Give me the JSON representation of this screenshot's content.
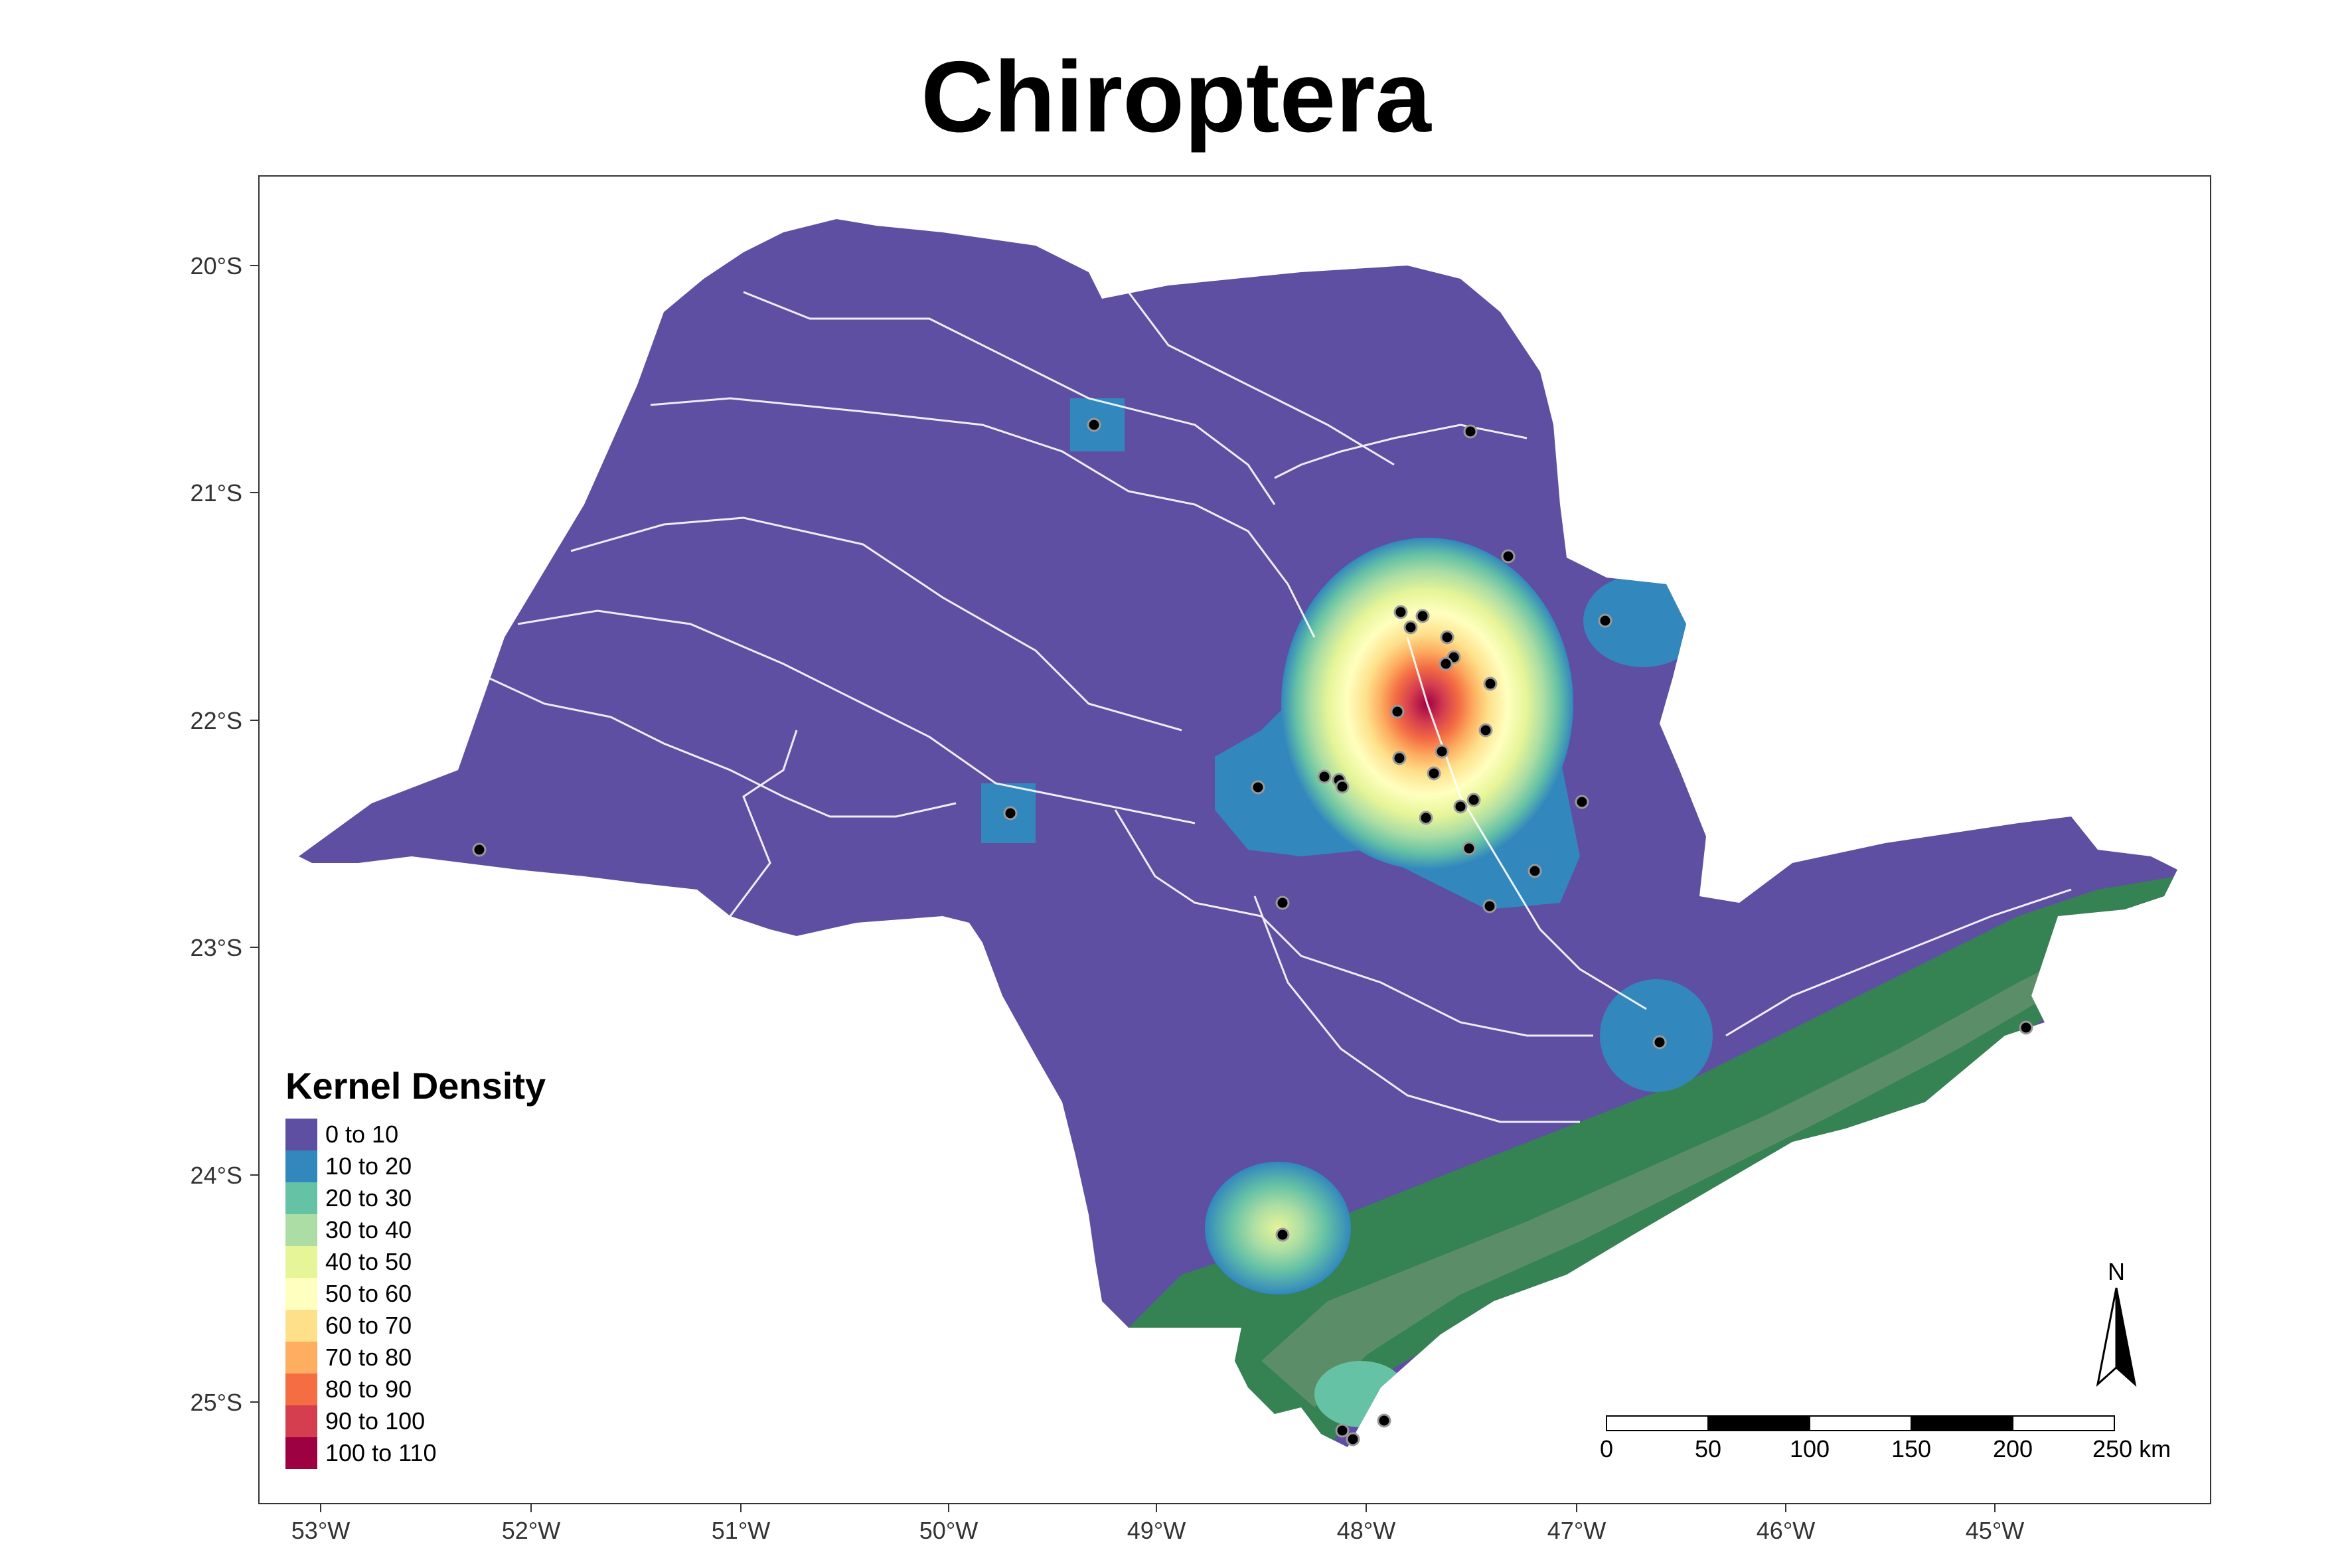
{
  "title": "Chiroptera",
  "axes": {
    "x_ticks": [
      "53°W",
      "52°W",
      "51°W",
      "50°W",
      "49°W",
      "48°W",
      "47°W",
      "46°W",
      "45°W"
    ],
    "y_ticks": [
      "20°S",
      "21°S",
      "22°S",
      "23°S",
      "24°S",
      "25°S"
    ]
  },
  "legend": {
    "title": "Kernel Density",
    "items": [
      {
        "label": "0 to 10",
        "color": "#5E4FA2"
      },
      {
        "label": "10 to 20",
        "color": "#3288BD"
      },
      {
        "label": "20 to 30",
        "color": "#66C2A5"
      },
      {
        "label": "30 to 40",
        "color": "#ABDDA4"
      },
      {
        "label": "40 to 50",
        "color": "#E6F598"
      },
      {
        "label": "50 to 60",
        "color": "#FFFFBF"
      },
      {
        "label": "60 to 70",
        "color": "#FEE08B"
      },
      {
        "label": "70 to 80",
        "color": "#FDAE61"
      },
      {
        "label": "80 to 90",
        "color": "#F46D43"
      },
      {
        "label": "90 to 100",
        "color": "#D53E4F"
      },
      {
        "label": "100 to 110",
        "color": "#9E0142"
      }
    ]
  },
  "scale_bar": {
    "labels": [
      "0",
      "50",
      "100",
      "150",
      "200",
      "250 km"
    ]
  },
  "north_arrow": {
    "label": "N"
  },
  "colors": {
    "state_fill": "#5E4FA2",
    "forest": "#2E8B45",
    "protected_area": "#5F8F6A",
    "rivers": "#FFFFFF",
    "points": "#000000"
  }
}
